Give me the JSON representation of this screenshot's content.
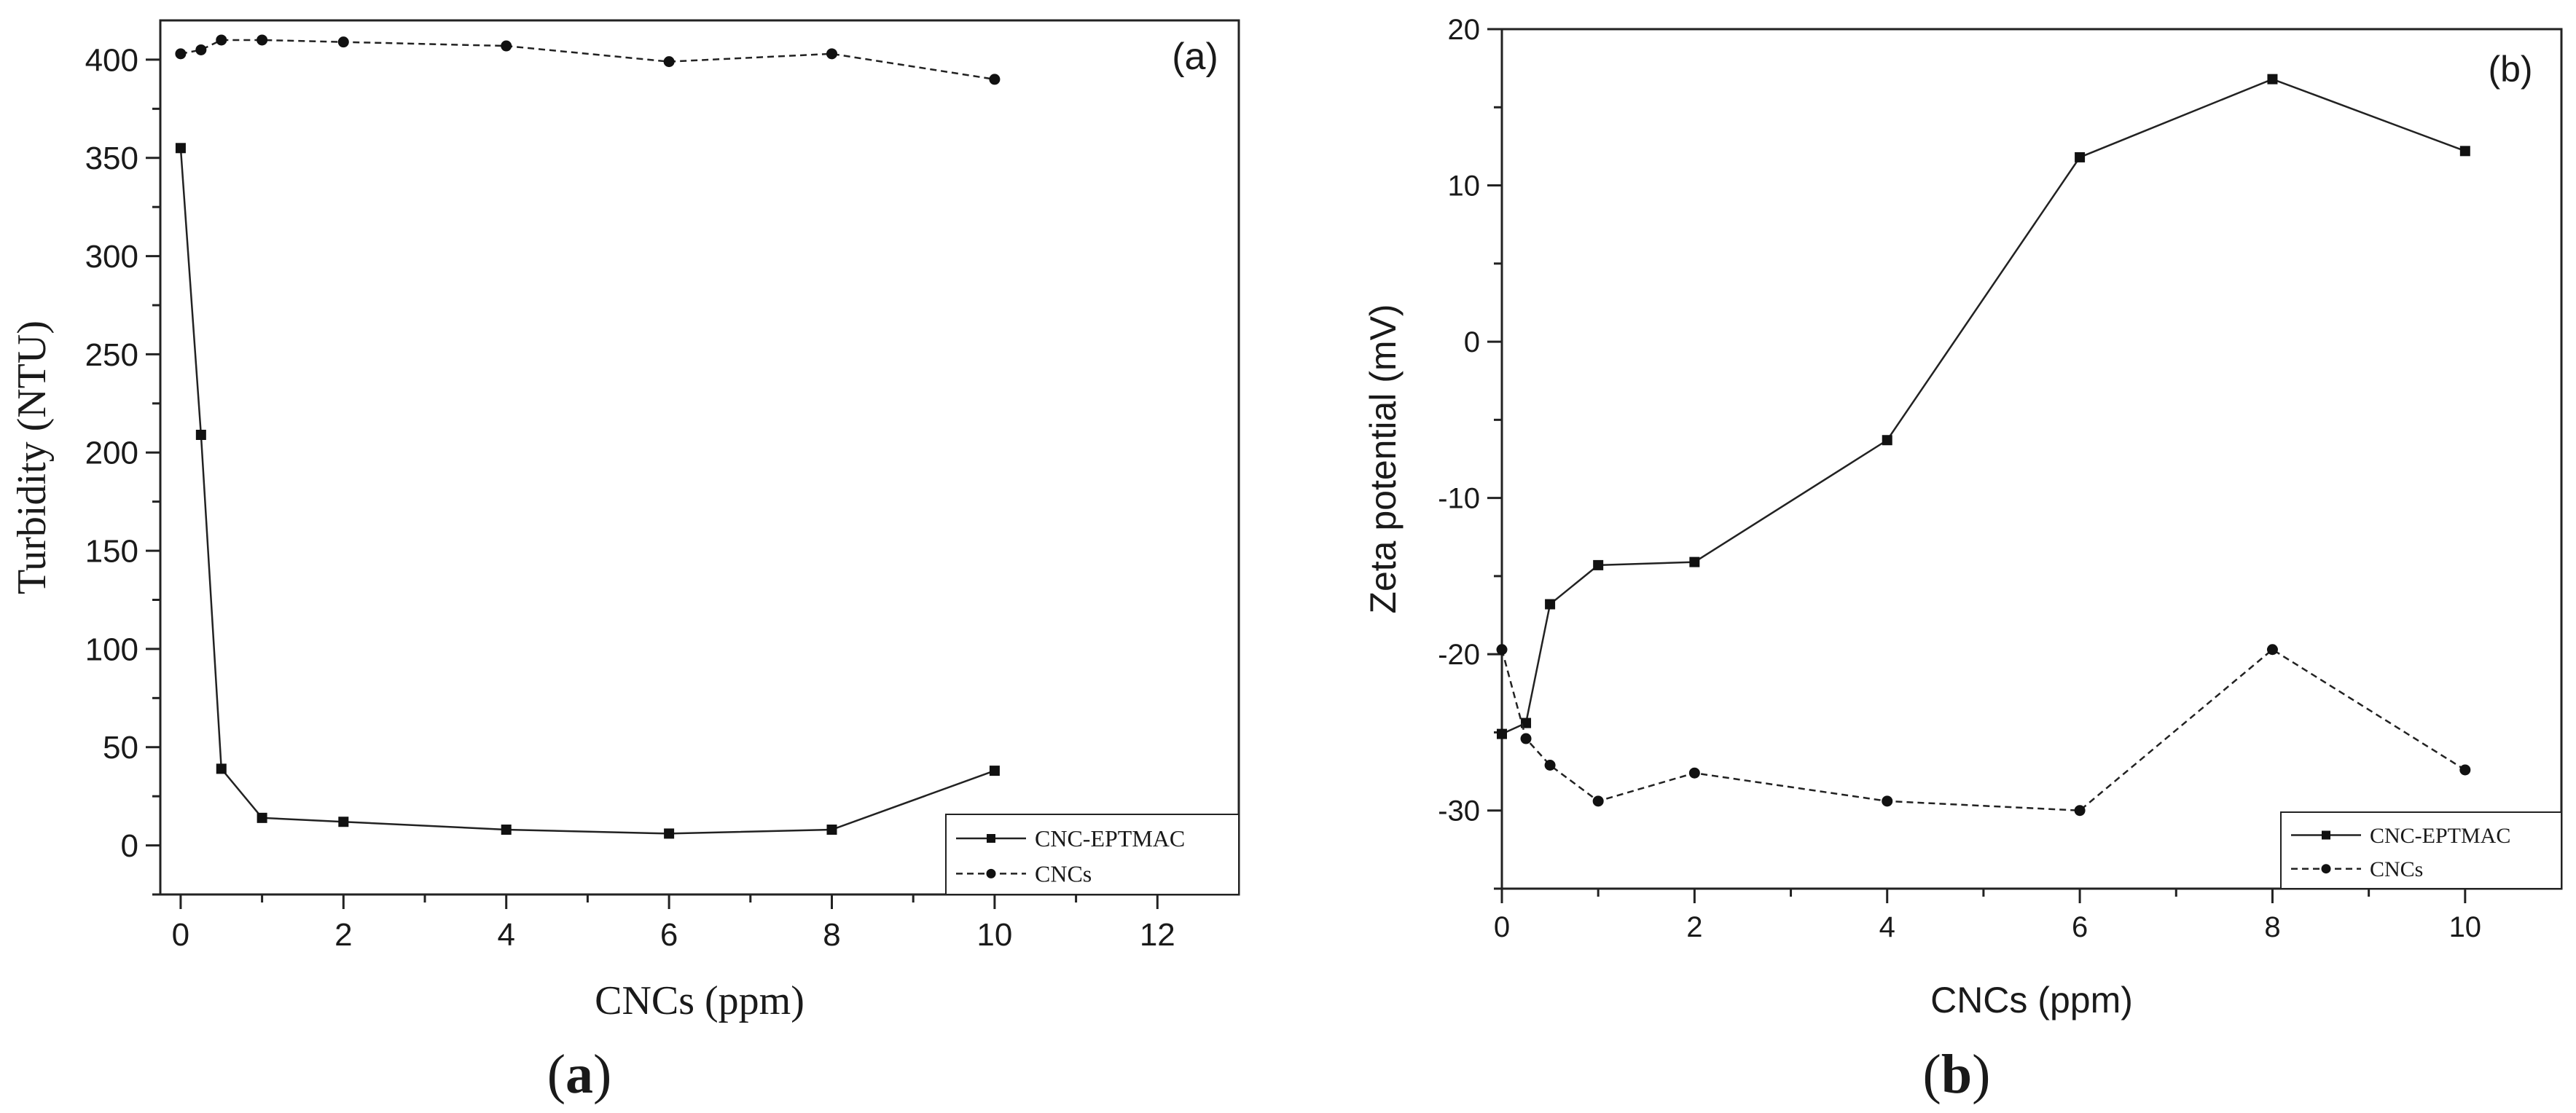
{
  "chart_data": [
    {
      "type": "line",
      "panel_tag": "(a)",
      "caption_letter": "a",
      "xlabel": "CNCs (ppm)",
      "ylabel": "Turbidity (NTU)",
      "xlim": [
        -0.25,
        13
      ],
      "ylim": [
        -25,
        420
      ],
      "xticks": [
        0,
        2,
        4,
        6,
        8,
        10,
        12
      ],
      "yticks": [
        0,
        50,
        100,
        150,
        200,
        250,
        300,
        350,
        400
      ],
      "legend_position": "bottom-right",
      "series": [
        {
          "name": "CNC-EPTMAC",
          "style": "solid",
          "marker": "square",
          "x": [
            0,
            0.25,
            0.5,
            1,
            2,
            4,
            6,
            8,
            10
          ],
          "y": [
            355,
            209,
            39,
            14,
            12,
            8,
            6,
            8,
            38
          ]
        },
        {
          "name": "CNCs",
          "style": "dashed",
          "marker": "circle",
          "x": [
            0,
            0.25,
            0.5,
            1,
            2,
            4,
            6,
            8,
            10
          ],
          "y": [
            403,
            405,
            410,
            410,
            409,
            407,
            399,
            403,
            390
          ]
        }
      ]
    },
    {
      "type": "line",
      "panel_tag": "(b)",
      "caption_letter": "b",
      "xlabel": "CNCs (ppm)",
      "ylabel": "Zeta potential (mV)",
      "xlim": [
        0,
        11
      ],
      "ylim": [
        -35,
        20
      ],
      "xticks": [
        0,
        2,
        4,
        6,
        8,
        10
      ],
      "yticks": [
        -30,
        -20,
        -10,
        0,
        10,
        20
      ],
      "legend_position": "bottom-right",
      "series": [
        {
          "name": "CNC-EPTMAC",
          "style": "solid",
          "marker": "square",
          "x": [
            0,
            0.25,
            0.5,
            1,
            2,
            4,
            6,
            8,
            10
          ],
          "y": [
            -25.1,
            -24.4,
            -16.8,
            -14.3,
            -14.1,
            -6.3,
            11.8,
            16.8,
            12.2
          ]
        },
        {
          "name": "CNCs",
          "style": "dashed",
          "marker": "circle",
          "x": [
            0,
            0.25,
            0.5,
            1,
            2,
            4,
            6,
            8,
            10
          ],
          "y": [
            -19.7,
            -25.4,
            -27.1,
            -29.4,
            -27.6,
            -29.4,
            -30,
            -19.7,
            -27.4
          ]
        }
      ]
    }
  ]
}
